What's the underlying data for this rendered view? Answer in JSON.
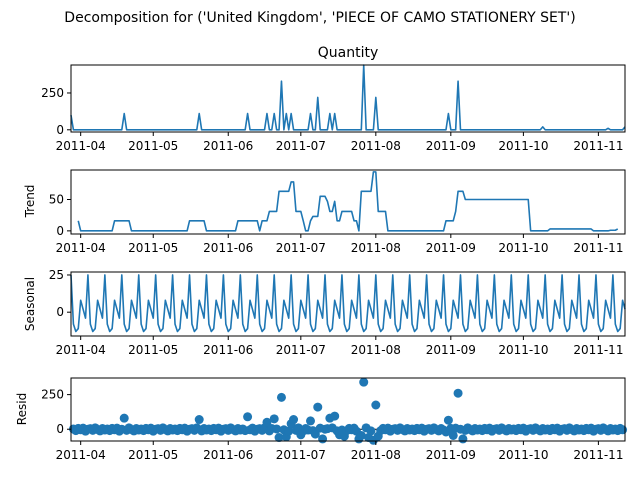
{
  "figure": {
    "title": "Decomposition for ('United Kingdom', 'PIECE OF CAMO STATIONERY SET')"
  },
  "chart_data": [
    {
      "type": "line",
      "title": "Quantity",
      "ylabel": "",
      "x_range": [
        "2011-03-28",
        "2011-11-12"
      ],
      "xticks": [
        "2011-04",
        "2011-05",
        "2011-06",
        "2011-07",
        "2011-08",
        "2011-09",
        "2011-10",
        "2011-11"
      ],
      "ylim": [
        -15,
        440
      ],
      "yticks": [
        0,
        250
      ],
      "series": [
        {
          "x": [
            "2011-03-28",
            "2011-03-29",
            "2011-04-18",
            "2011-04-19",
            "2011-04-20",
            "2011-05-19",
            "2011-05-20",
            "2011-05-21",
            "2011-06-08",
            "2011-06-09",
            "2011-06-10",
            "2011-06-16",
            "2011-06-17",
            "2011-06-18",
            "2011-06-19",
            "2011-06-20",
            "2011-06-21",
            "2011-06-22",
            "2011-06-23",
            "2011-06-24",
            "2011-06-25",
            "2011-06-26",
            "2011-06-27",
            "2011-06-28",
            "2011-06-29",
            "2011-07-04",
            "2011-07-05",
            "2011-07-06",
            "2011-07-07",
            "2011-07-08",
            "2011-07-09",
            "2011-07-10",
            "2011-07-12",
            "2011-07-13",
            "2011-07-14",
            "2011-07-15",
            "2011-07-16",
            "2011-07-17",
            "2011-07-26",
            "2011-07-27",
            "2011-07-28",
            "2011-07-31",
            "2011-08-01",
            "2011-08-02",
            "2011-08-30",
            "2011-08-31",
            "2011-09-01",
            "2011-09-02",
            "2011-09-03",
            "2011-09-04",
            "2011-09-05",
            "2011-10-08",
            "2011-10-09",
            "2011-10-10",
            "2011-11-04",
            "2011-11-05",
            "2011-11-06",
            "2011-11-11",
            "2011-11-12"
          ],
          "values": [
            100,
            0,
            0,
            110,
            0,
            0,
            110,
            0,
            0,
            110,
            0,
            0,
            110,
            0,
            0,
            110,
            0,
            0,
            330,
            0,
            110,
            0,
            110,
            0,
            0,
            0,
            110,
            0,
            0,
            220,
            0,
            0,
            0,
            110,
            0,
            110,
            0,
            0,
            0,
            440,
            0,
            0,
            220,
            0,
            0,
            110,
            0,
            0,
            0,
            330,
            0,
            0,
            20,
            0,
            0,
            10,
            0,
            0,
            20
          ]
        }
      ]
    },
    {
      "type": "line",
      "title": "",
      "ylabel": "Trend",
      "x_range": [
        "2011-03-28",
        "2011-11-12"
      ],
      "xticks": [
        "2011-04",
        "2011-05",
        "2011-06",
        "2011-07",
        "2011-08",
        "2011-09",
        "2011-10",
        "2011-11"
      ],
      "ylim": [
        -5,
        97
      ],
      "yticks": [
        0,
        50
      ],
      "series": [
        {
          "x": [
            "2011-03-31",
            "2011-04-01",
            "2011-04-14",
            "2011-04-15",
            "2011-04-21",
            "2011-04-22",
            "2011-05-15",
            "2011-05-16",
            "2011-05-22",
            "2011-05-23",
            "2011-06-04",
            "2011-06-05",
            "2011-06-11",
            "2011-06-12",
            "2011-06-13",
            "2011-06-14",
            "2011-06-15",
            "2011-06-16",
            "2011-06-17",
            "2011-06-18",
            "2011-06-19",
            "2011-06-20",
            "2011-06-21",
            "2011-06-22",
            "2011-06-23",
            "2011-06-24",
            "2011-06-25",
            "2011-06-26",
            "2011-06-27",
            "2011-06-28",
            "2011-06-29",
            "2011-06-30",
            "2011-07-01",
            "2011-07-02",
            "2011-07-03",
            "2011-07-04",
            "2011-07-05",
            "2011-07-06",
            "2011-07-07",
            "2011-07-08",
            "2011-07-09",
            "2011-07-10",
            "2011-07-11",
            "2011-07-12",
            "2011-07-13",
            "2011-07-14",
            "2011-07-15",
            "2011-07-16",
            "2011-07-17",
            "2011-07-18",
            "2011-07-19",
            "2011-07-20",
            "2011-07-21",
            "2011-07-22",
            "2011-07-23",
            "2011-07-24",
            "2011-07-25",
            "2011-07-26",
            "2011-07-27",
            "2011-07-28",
            "2011-07-29",
            "2011-07-30",
            "2011-07-31",
            "2011-08-01",
            "2011-08-02",
            "2011-08-03",
            "2011-08-04",
            "2011-08-05",
            "2011-08-06",
            "2011-08-26",
            "2011-08-27",
            "2011-08-28",
            "2011-08-29",
            "2011-08-30",
            "2011-08-31",
            "2011-09-01",
            "2011-09-02",
            "2011-09-03",
            "2011-09-04",
            "2011-09-05",
            "2011-09-06",
            "2011-09-07",
            "2011-09-08",
            "2011-09-09",
            "2011-10-04",
            "2011-10-05",
            "2011-10-11",
            "2011-10-12",
            "2011-10-29",
            "2011-10-30",
            "2011-11-05",
            "2011-11-06",
            "2011-11-08",
            "2011-11-09"
          ],
          "values": [
            16,
            0,
            0,
            16,
            16,
            0,
            0,
            16,
            16,
            0,
            0,
            16,
            16,
            16,
            16,
            0,
            16,
            16,
            16,
            31,
            31,
            31,
            31,
            63,
            63,
            63,
            63,
            63,
            78,
            78,
            31,
            31,
            31,
            16,
            0,
            0,
            16,
            23,
            23,
            23,
            55,
            55,
            55,
            47,
            31,
            31,
            47,
            16,
            16,
            31,
            31,
            31,
            31,
            31,
            16,
            16,
            0,
            63,
            63,
            63,
            63,
            63,
            94,
            94,
            31,
            31,
            31,
            31,
            0,
            0,
            0,
            0,
            0,
            16,
            16,
            16,
            16,
            31,
            63,
            63,
            63,
            50,
            50,
            50,
            0,
            0,
            0,
            3,
            3,
            0,
            0,
            1,
            1,
            3
          ]
        }
      ]
    },
    {
      "type": "line",
      "title": "",
      "ylabel": "Seasonal",
      "x_range": [
        "2011-03-28",
        "2011-11-12"
      ],
      "xticks": [
        "2011-04",
        "2011-05",
        "2011-06",
        "2011-07",
        "2011-08",
        "2011-09",
        "2011-10",
        "2011-11"
      ],
      "ylim": [
        -16,
        27
      ],
      "yticks": [
        0,
        25
      ],
      "period_pattern": [
        25,
        -8,
        -13,
        -11,
        8,
        2,
        -4
      ],
      "series": [
        {
          "x_start": "2011-03-28",
          "x_end": "2011-11-12",
          "repeats_pattern": true
        }
      ]
    },
    {
      "type": "scatter",
      "title": "",
      "ylabel": "Resid",
      "x_range": [
        "2011-03-28",
        "2011-11-12"
      ],
      "xticks": [
        "2011-04",
        "2011-05",
        "2011-06",
        "2011-07",
        "2011-08",
        "2011-09",
        "2011-10",
        "2011-11"
      ],
      "ylim": [
        -85,
        370
      ],
      "yticks": [
        0,
        250
      ],
      "zero_line": true,
      "series": [
        {
          "baseline_values": [
            2,
            -10,
            6,
            -4,
            8,
            -14,
            0,
            4,
            -8,
            10,
            -2,
            -12,
            5,
            -6
          ],
          "x": [
            "2011-04-19",
            "2011-05-20",
            "2011-06-09",
            "2011-06-17",
            "2011-06-20",
            "2011-06-22",
            "2011-06-23",
            "2011-06-25",
            "2011-06-27",
            "2011-06-28",
            "2011-07-01",
            "2011-07-05",
            "2011-07-07",
            "2011-07-08",
            "2011-07-10",
            "2011-07-13",
            "2011-07-15",
            "2011-07-17",
            "2011-07-19",
            "2011-07-25",
            "2011-07-26",
            "2011-07-27",
            "2011-07-29",
            "2011-07-31",
            "2011-08-01",
            "2011-08-02",
            "2011-08-30",
            "2011-08-31",
            "2011-09-02",
            "2011-09-04",
            "2011-09-06"
          ],
          "values": [
            80,
            70,
            90,
            50,
            75,
            -60,
            230,
            -55,
            40,
            70,
            -40,
            60,
            -35,
            160,
            -70,
            80,
            95,
            -40,
            -50,
            -70,
            -45,
            340,
            -60,
            -80,
            175,
            -50,
            -20,
            65,
            -45,
            260,
            -70
          ]
        }
      ]
    }
  ]
}
